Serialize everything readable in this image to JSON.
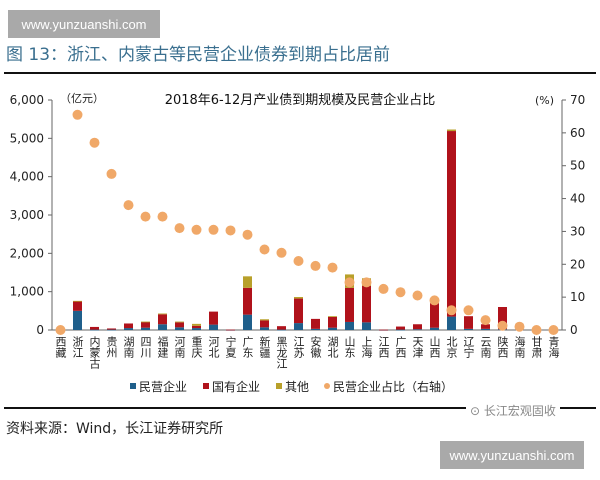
{
  "watermark": "www.yunzuanshi.com",
  "figure_title": "图 13：浙江、内蒙古等民营企业债券到期占比居前",
  "source": "资料来源：Wind，长江证券研究所",
  "logo_text": "长江宏观固收",
  "chart_data": {
    "type": "bar",
    "stacked": true,
    "title": "2018年6-12月产业债到期规模及民营企业占比",
    "ylabel_left": "（亿元）",
    "ylabel_right": "(%)",
    "ylim_left": [
      0,
      6000
    ],
    "ylim_right": [
      0,
      70
    ],
    "yticks_left": [
      "0",
      "1,000",
      "2,000",
      "3,000",
      "4,000",
      "5,000",
      "6,000"
    ],
    "yticks_right": [
      "0",
      "10",
      "20",
      "30",
      "40",
      "50",
      "60",
      "70"
    ],
    "grid": false,
    "legend_position": "bottom",
    "categories": [
      "西藏",
      "浙江",
      "内蒙古",
      "贵州",
      "湖南",
      "四川",
      "福建",
      "河南",
      "重庆",
      "河北",
      "宁夏",
      "广东",
      "新疆",
      "黑龙江",
      "江苏",
      "安徽",
      "湖北",
      "山东",
      "上海",
      "江西",
      "广西",
      "天津",
      "山西",
      "北京",
      "辽宁",
      "云南",
      "陕西",
      "海南",
      "甘肃",
      "青海"
    ],
    "series": [
      {
        "name": "民营企业",
        "type": "bar",
        "axis": "left",
        "color": "#1f5f8b",
        "values": [
          0,
          500,
          10,
          10,
          50,
          60,
          150,
          70,
          50,
          140,
          5,
          400,
          70,
          10,
          180,
          30,
          60,
          210,
          200,
          5,
          10,
          20,
          60,
          350,
          30,
          30,
          20,
          0,
          0,
          0
        ]
      },
      {
        "name": "国有企业",
        "type": "bar",
        "axis": "left",
        "color": "#b0121b",
        "values": [
          0,
          250,
          70,
          30,
          120,
          150,
          260,
          130,
          60,
          340,
          5,
          700,
          180,
          90,
          640,
          260,
          280,
          890,
          950,
          5,
          80,
          130,
          640,
          4840,
          330,
          120,
          580,
          0,
          0,
          0
        ]
      },
      {
        "name": "其他",
        "type": "bar",
        "axis": "left",
        "color": "#b8a02a",
        "values": [
          0,
          10,
          0,
          0,
          0,
          10,
          20,
          20,
          50,
          0,
          0,
          300,
          30,
          0,
          40,
          0,
          20,
          350,
          200,
          0,
          0,
          0,
          0,
          40,
          0,
          0,
          0,
          0,
          0,
          0
        ]
      },
      {
        "name": "民营企业占比（右轴）",
        "type": "scatter",
        "axis": "right",
        "color": "#f0a868",
        "values": [
          0,
          65.5,
          57,
          47.5,
          38,
          34.5,
          34.5,
          31,
          30.5,
          30.5,
          30.3,
          29,
          24.5,
          23.5,
          21,
          19.5,
          19,
          14.5,
          14.5,
          12.5,
          11.5,
          10.5,
          9,
          6,
          6,
          3,
          1.3,
          1,
          0,
          0
        ]
      }
    ]
  }
}
